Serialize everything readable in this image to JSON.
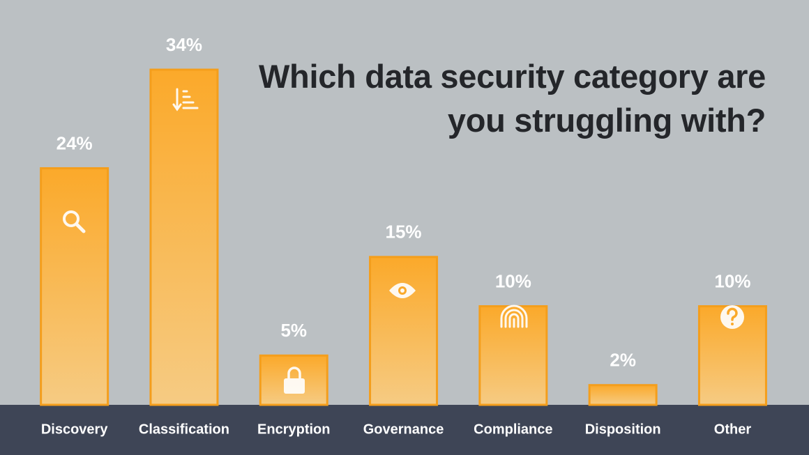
{
  "chart_data": {
    "type": "bar",
    "title": "Which data security category are you struggling with?",
    "categories": [
      "Discovery",
      "Classification",
      "Encryption",
      "Governance",
      "Compliance",
      "Disposition",
      "Other"
    ],
    "values": [
      24,
      34,
      5,
      15,
      10,
      2,
      10
    ],
    "value_labels": [
      "24%",
      "34%",
      "5%",
      "15%",
      "10%",
      "2%",
      "10%"
    ],
    "color": "#fba92a"
  }
}
